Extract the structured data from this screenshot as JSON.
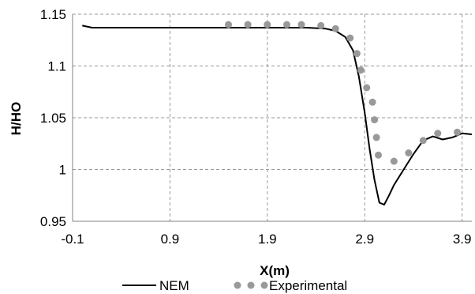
{
  "chart_data": {
    "type": "line",
    "title": "",
    "xlabel": "X(m)",
    "ylabel": "H/HO",
    "xlim": [
      -0.1,
      4.0
    ],
    "ylim": [
      0.95,
      1.15
    ],
    "xticks": [
      -0.1,
      0.9,
      1.9,
      2.9,
      3.9
    ],
    "xtick_labels": [
      "-0.1",
      "0.9",
      "1.9",
      "2.9",
      "3.9"
    ],
    "yticks": [
      0.95,
      1.0,
      1.05,
      1.1,
      1.15
    ],
    "ytick_labels": [
      "0.95",
      "1",
      "1.05",
      "1.1",
      "1.15"
    ],
    "grid": true,
    "legend_position": "bottom",
    "series": [
      {
        "name": "NEM",
        "style": "line",
        "color": "#000000",
        "x": [
          0.0,
          0.1,
          0.5,
          1.0,
          1.5,
          2.0,
          2.3,
          2.5,
          2.6,
          2.7,
          2.78,
          2.84,
          2.9,
          2.95,
          3.0,
          3.05,
          3.1,
          3.15,
          3.2,
          3.3,
          3.4,
          3.5,
          3.6,
          3.7,
          3.8,
          3.9,
          4.0
        ],
        "y": [
          1.139,
          1.137,
          1.137,
          1.137,
          1.137,
          1.137,
          1.137,
          1.136,
          1.134,
          1.128,
          1.115,
          1.09,
          1.055,
          1.02,
          0.99,
          0.968,
          0.966,
          0.975,
          0.985,
          1.0,
          1.015,
          1.028,
          1.032,
          1.029,
          1.031,
          1.035,
          1.034
        ]
      },
      {
        "name": "Experimental",
        "style": "markers",
        "color": "#999999",
        "x": [
          1.5,
          1.7,
          1.9,
          2.1,
          2.25,
          2.45,
          2.6,
          2.75,
          2.82,
          2.86,
          2.92,
          2.98,
          3.0,
          3.02,
          3.04,
          3.2,
          3.35,
          3.5,
          3.65,
          3.85
        ],
        "y": [
          1.14,
          1.14,
          1.14,
          1.14,
          1.14,
          1.139,
          1.136,
          1.127,
          1.112,
          1.096,
          1.079,
          1.065,
          1.048,
          1.031,
          1.014,
          1.008,
          1.016,
          1.028,
          1.035,
          1.036
        ]
      }
    ]
  }
}
